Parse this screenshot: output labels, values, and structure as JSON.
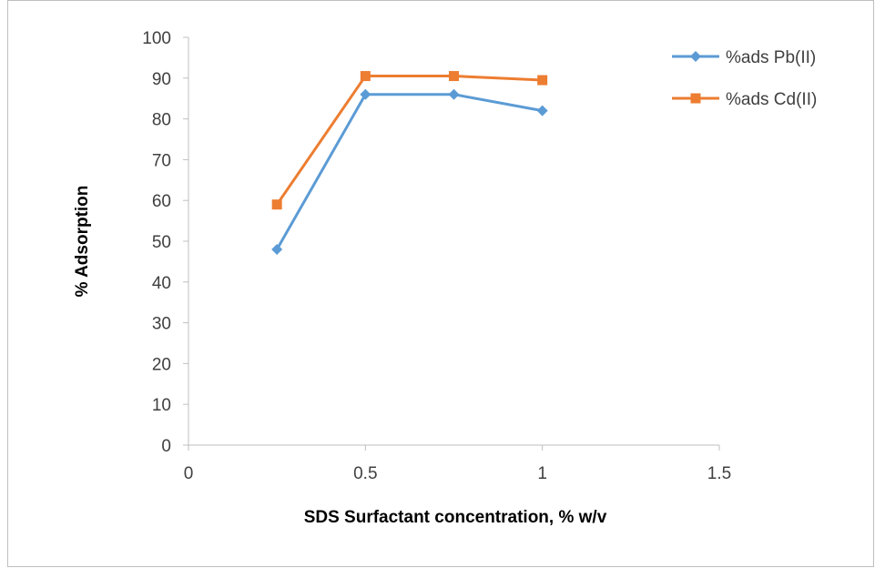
{
  "chart_data": {
    "type": "scatter",
    "xlabel": "SDS Surfactant concentration, % w/v",
    "ylabel": "% Adsorption",
    "xlim": [
      0,
      1.5
    ],
    "ylim": [
      0,
      100
    ],
    "x_ticks": [
      "0",
      "0.5",
      "1",
      "1.5"
    ],
    "y_ticks": [
      "0",
      "10",
      "20",
      "30",
      "40",
      "50",
      "60",
      "70",
      "80",
      "90",
      "100"
    ],
    "x_tick_values": [
      0,
      0.5,
      1,
      1.5
    ],
    "y_tick_values": [
      0,
      10,
      20,
      30,
      40,
      50,
      60,
      70,
      80,
      90,
      100
    ],
    "grid": false,
    "legend_position": "top-right",
    "series": [
      {
        "name": "%ads Pb(II)",
        "color": "#5b9bd5",
        "marker": "diamond",
        "x": [
          0.25,
          0.5,
          0.75,
          1.0
        ],
        "y": [
          48,
          86,
          86,
          82
        ]
      },
      {
        "name": "%ads Cd(II)",
        "color": "#ed7d31",
        "marker": "square",
        "x": [
          0.25,
          0.5,
          0.75,
          1.0
        ],
        "y": [
          59,
          90.5,
          90.5,
          89.5
        ]
      }
    ]
  }
}
